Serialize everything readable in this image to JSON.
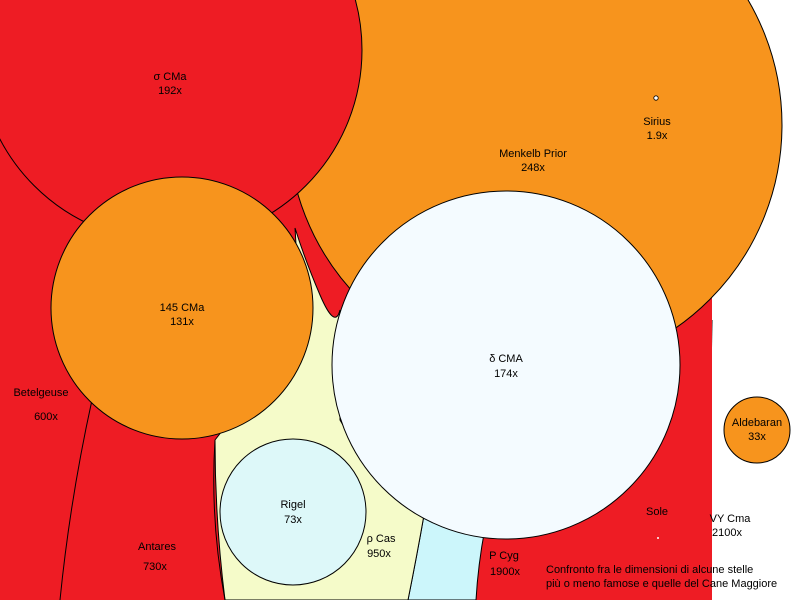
{
  "colors": {
    "red": "#ee1c24",
    "orange": "#f7941d",
    "pale_yellow": "#f5fbc9",
    "pale_cyan": "#ccf6fb",
    "white_blue": "#f4fbff",
    "light_cyan": "#ddf8f9",
    "outline": "#000000"
  },
  "stars": {
    "vy_cma": {
      "name": "VY Cma",
      "ratio": "2100x"
    },
    "p_cyg": {
      "name": "P Cyg",
      "ratio": "1900x"
    },
    "rho_cas": {
      "name": "ρ Cas",
      "ratio": "950x"
    },
    "antares": {
      "name": "Antares",
      "ratio": "730x"
    },
    "betelgeuse": {
      "name": "Betelgeuse",
      "ratio": "600x"
    },
    "menkelb": {
      "name": "Menkelb Prior",
      "ratio": "248x"
    },
    "sigma_cma": {
      "name": "σ CMa",
      "ratio": "192x"
    },
    "delta_cma": {
      "name": "δ CMA",
      "ratio": "174x"
    },
    "cma145": {
      "name": "145 CMa",
      "ratio": "131x"
    },
    "rigel": {
      "name": "Rigel",
      "ratio": "73x"
    },
    "aldebaran": {
      "name": "Aldebaran",
      "ratio": "33x"
    },
    "sirius": {
      "name": "Sirius",
      "ratio": "1.9x"
    },
    "sole": {
      "name": "Sole"
    }
  },
  "caption": {
    "line1": "Confronto fra le dimensioni di alcune stelle",
    "line2": "più o meno famose e quelle del Cane Maggiore"
  }
}
